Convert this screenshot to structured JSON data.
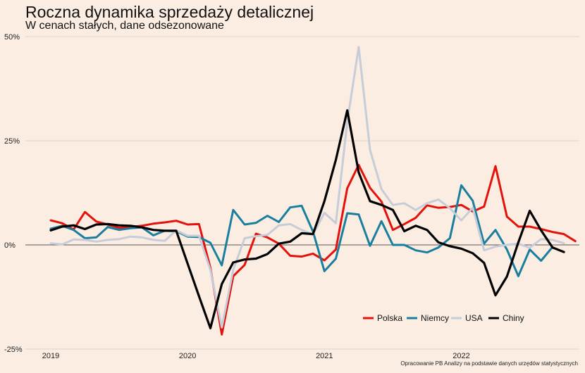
{
  "chart_data": {
    "type": "line",
    "title": "Roczna dynamika sprzedaży detalicznej",
    "subtitle": "W cenach stałych, dane odsezonowane",
    "ylim": [
      -25,
      50
    ],
    "yticks": [
      {
        "value": 50,
        "label": "50%"
      },
      {
        "value": 25,
        "label": "25%"
      },
      {
        "value": 0,
        "label": "0%"
      },
      {
        "value": -25,
        "label": "-25%"
      }
    ],
    "x": [
      "2019-01",
      "2019-02",
      "2019-03",
      "2019-04",
      "2019-05",
      "2019-06",
      "2019-07",
      "2019-08",
      "2019-09",
      "2019-10",
      "2019-11",
      "2019-12",
      "2020-01",
      "2020-02",
      "2020-03",
      "2020-04",
      "2020-05",
      "2020-06",
      "2020-07",
      "2020-08",
      "2020-09",
      "2020-10",
      "2020-11",
      "2020-12",
      "2021-01",
      "2021-02",
      "2021-03",
      "2021-04",
      "2021-05",
      "2021-06",
      "2021-07",
      "2021-08",
      "2021-09",
      "2021-10",
      "2021-11",
      "2021-12",
      "2022-01",
      "2022-02",
      "2022-03",
      "2022-04",
      "2022-05",
      "2022-06",
      "2022-07",
      "2022-08",
      "2022-09",
      "2022-10",
      "2022-11"
    ],
    "xticks": [
      {
        "value": "2019-01",
        "label": "2019"
      },
      {
        "value": "2020-01",
        "label": "2020"
      },
      {
        "value": "2021-01",
        "label": "2021"
      },
      {
        "value": "2022-01",
        "label": "2022"
      }
    ],
    "grid": true,
    "legend_position": "bottom-right",
    "series": [
      {
        "name": "Polska",
        "color": "#e3120b",
        "values": [
          5.9,
          5.2,
          3.7,
          7.9,
          5.6,
          4.9,
          4.1,
          4.3,
          4.6,
          5.1,
          5.4,
          5.8,
          4.9,
          5.0,
          -5.5,
          -21.5,
          -7.5,
          -4.8,
          2.7,
          1.8,
          0.3,
          -2.6,
          -2.8,
          -2.1,
          -3.7,
          -1.1,
          13.6,
          19.2,
          13.7,
          10.4,
          3.6,
          5.0,
          6.5,
          9.5,
          8.9,
          9.1,
          9.6,
          8.0,
          9.2,
          18.9,
          6.8,
          4.4,
          4.4,
          3.8,
          3.1,
          2.6,
          0.9
        ]
      },
      {
        "name": "Niemcy",
        "color": "#1a7f9e",
        "values": [
          3.9,
          4.6,
          3.6,
          1.6,
          1.8,
          4.3,
          3.6,
          4.0,
          4.2,
          2.3,
          3.4,
          3.3,
          2.0,
          1.9,
          0.5,
          -4.9,
          8.4,
          4.9,
          5.3,
          7.0,
          5.5,
          9.0,
          9.4,
          3.2,
          -6.3,
          -3.3,
          7.6,
          7.3,
          -0.2,
          5.7,
          0.0,
          0.0,
          -1.3,
          -1.8,
          -0.6,
          1.6,
          14.3,
          10.6,
          0.3,
          3.6,
          -1.1,
          -7.5,
          -1.1,
          -3.8,
          -0.5,
          null,
          null
        ]
      },
      {
        "name": "USA",
        "color": "#c6cdd9",
        "values": [
          0.4,
          0.1,
          1.3,
          1.2,
          0.8,
          1.2,
          1.4,
          2.0,
          1.8,
          1.2,
          1.0,
          3.5,
          2.2,
          2.2,
          -6.0,
          -19.8,
          -6.0,
          1.6,
          2.1,
          2.4,
          4.7,
          5.0,
          3.6,
          2.5,
          7.7,
          5.2,
          29.5,
          47.5,
          22.8,
          13.4,
          9.6,
          10.0,
          8.4,
          10.0,
          10.9,
          8.8,
          5.9,
          8.9,
          -1.3,
          -0.4,
          0.0,
          0.3,
          -0.7,
          1.4,
          1.2,
          0.4,
          null
        ]
      },
      {
        "name": "Chiny",
        "color": "#000000",
        "values": [
          3.5,
          4.4,
          4.7,
          3.8,
          4.9,
          5.0,
          4.7,
          4.6,
          4.2,
          3.6,
          3.4,
          3.4,
          -4.5,
          -12.3,
          -20.0,
          -9.4,
          -4.2,
          -3.5,
          -3.3,
          -2.2,
          0.3,
          0.8,
          2.8,
          2.6,
          10.5,
          20.4,
          32.3,
          17.4,
          10.5,
          9.6,
          8.4,
          3.3,
          4.6,
          3.6,
          0.6,
          -0.3,
          -0.9,
          -2.0,
          -4.3,
          -12.1,
          -7.6,
          0.6,
          8.2,
          3.5,
          -0.6,
          -1.7,
          null
        ]
      }
    ]
  },
  "footer": {
    "caption": "Opracowanie PB Analizy na podstawie danych urzędów statystycznych"
  }
}
